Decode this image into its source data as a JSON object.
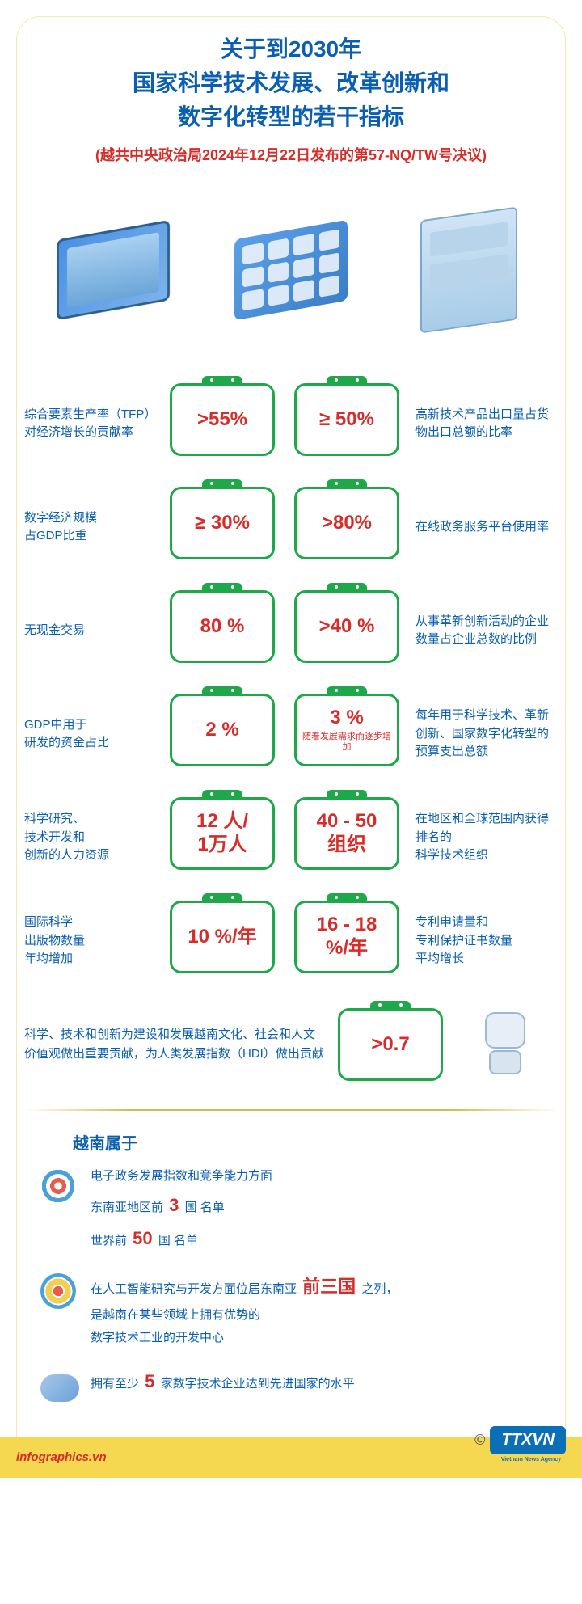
{
  "title": {
    "line1": "关于到2030年",
    "line2": "国家科学技术发展、改革创新和",
    "line3": "数字化转型的若干指标",
    "color": "#0b5fb0",
    "fontsize": 28
  },
  "subtitle": {
    "text": "(越共中央政治局2024年12月22日发布的第57-NQ/TW号决议)",
    "color": "#d72d2a",
    "fontsize": 18
  },
  "colors": {
    "box_border": "#1ea84a",
    "value_red": "#d72d2a",
    "label_blue": "#0b5fb0",
    "frame": "#f5e8b0",
    "divider": "#d8b850",
    "footer_bg": "#f5d850",
    "logo_bg": "#0b6fb8"
  },
  "metrics": [
    {
      "left_label": "综合要素生产率（TFP）对经济增长的贡献率",
      "left_value": ">55%",
      "right_value": "≥ 50%",
      "right_label": "高新技术产品出口量占货物出口总额的比率"
    },
    {
      "left_label": "数字经济规模\n占GDP比重",
      "left_value": "≥ 30%",
      "right_value": ">80%",
      "right_label": "在线政务服务平台使用率"
    },
    {
      "left_label": "无现金交易",
      "left_value": "80 %",
      "right_value": ">40 %",
      "right_label": "从事革新创新活动的企业数量占企业总数的比例"
    },
    {
      "left_label": "GDP中用于\n研发的资金占比",
      "left_value": "2 %",
      "right_value": "3 %",
      "right_sub": "随着发展需求而逐步增加",
      "right_label": "每年用于科学技术、革新创新、国家数字化转型的预算支出总额"
    },
    {
      "left_label": "科学研究、\n技术开发和\n创新的人力资源",
      "left_value": "12 人/\n1万人",
      "right_value": "40 - 50\n组织",
      "right_label": "在地区和全球范围内获得排名的\n科学技术组织"
    },
    {
      "left_label": "国际科学\n出版物数量\n年均增加",
      "left_value": "10 %/年",
      "right_value": "16 - 18\n%/年",
      "right_label": "专利申请量和\n专利保护证书数量\n平均增长"
    }
  ],
  "single": {
    "label": "科学、技术和创新为建设和发展越南文化、社会和人文价值观做出重要贡献，为人类发展指数（HDI）做出贡献",
    "value": ">0.7"
  },
  "rankings": {
    "header": "越南属于",
    "items": [
      {
        "icon": "target",
        "lines": [
          {
            "pre": "电子政务发展指数和竞争能力方面",
            "num": "",
            "post": ""
          },
          {
            "pre": "东南亚地区前 ",
            "num": "3",
            "post": " 国 名单"
          },
          {
            "pre": "世界前 ",
            "num": "50",
            "post": " 国 名单"
          }
        ]
      },
      {
        "icon": "ai",
        "lines": [
          {
            "pre": "在人工智能研究与开发方面位居东南亚 ",
            "num": "前三国",
            "post": " 之列，"
          },
          {
            "pre": "是越南在某些领域上拥有优势的",
            "num": "",
            "post": ""
          },
          {
            "pre": "数字技术工业的开发中心",
            "num": "",
            "post": ""
          }
        ]
      },
      {
        "icon": "cloud",
        "lines": [
          {
            "pre": "拥有至少 ",
            "num": "5",
            "post": " 家数字技术企业达到先进国家的水平"
          }
        ]
      }
    ]
  },
  "footer": {
    "left": "infographics.vn",
    "logo": "TTXVN",
    "logo_sub": "Vietnam News Agency"
  }
}
